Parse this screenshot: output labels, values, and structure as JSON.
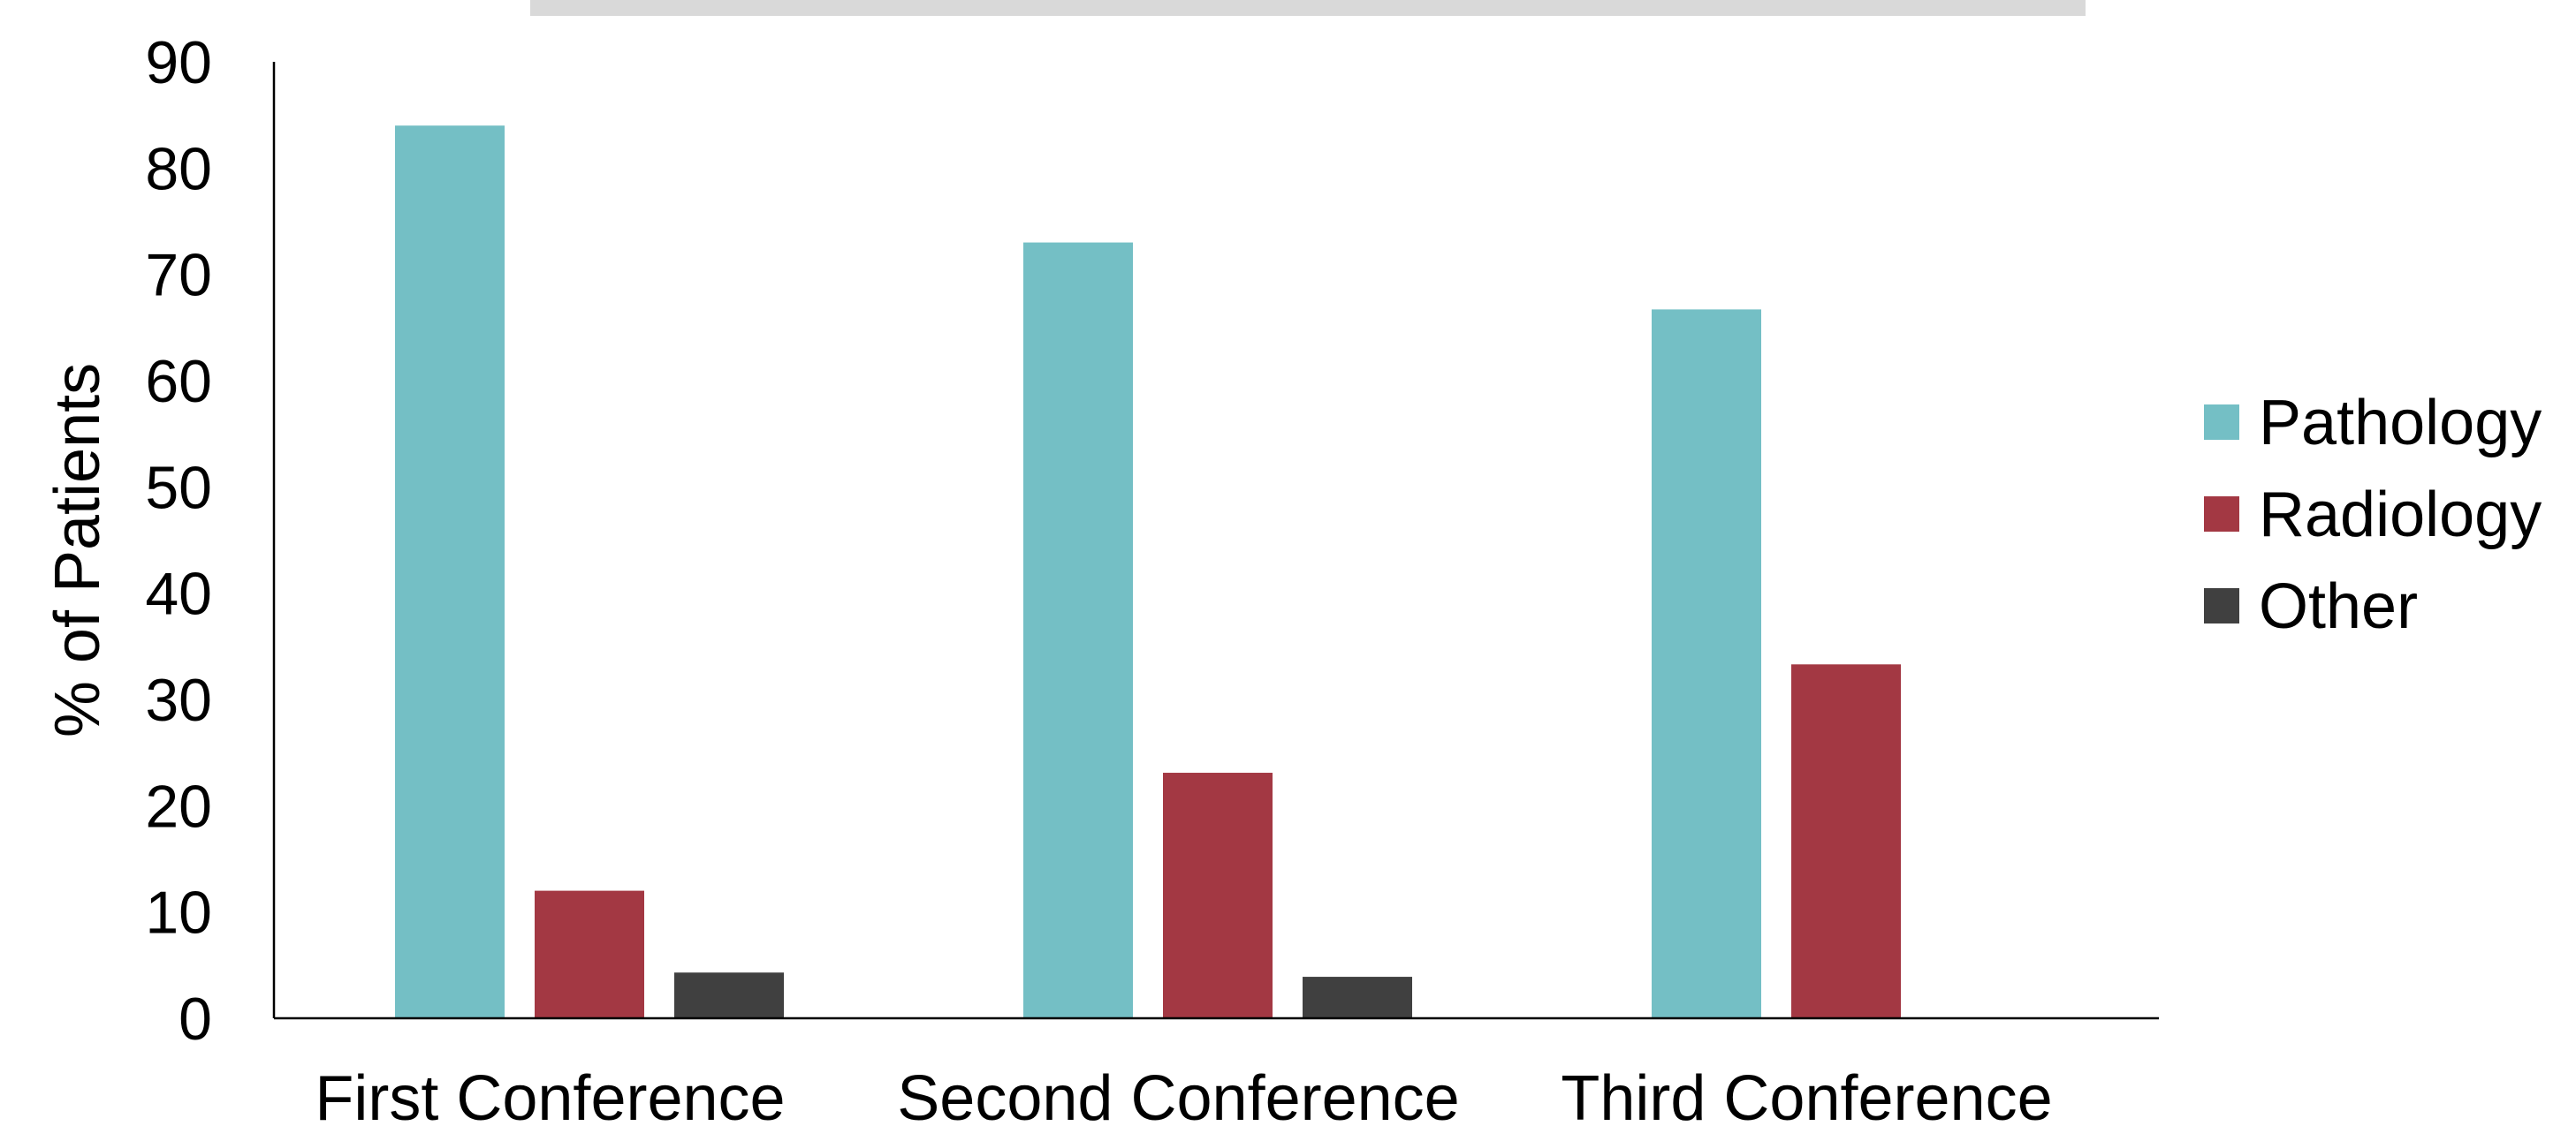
{
  "chart_data": {
    "type": "bar",
    "title": "",
    "xlabel": "",
    "ylabel": "% of Patients",
    "ylim": [
      0,
      90
    ],
    "yticks": [
      0,
      10,
      20,
      30,
      40,
      50,
      60,
      70,
      80,
      90
    ],
    "grid": false,
    "legend_position": "right",
    "categories": [
      "First Conference",
      "Second Conference",
      "Third Conference"
    ],
    "series": [
      {
        "name": "Pathology",
        "color": "#74bfc5",
        "values": [
          84,
          73,
          66.7
        ]
      },
      {
        "name": "Radiology",
        "color": "#a33843",
        "values": [
          12,
          23.1,
          33.3
        ]
      },
      {
        "name": "Other",
        "color": "#404040",
        "values": [
          4.3,
          3.9,
          0
        ]
      }
    ]
  }
}
